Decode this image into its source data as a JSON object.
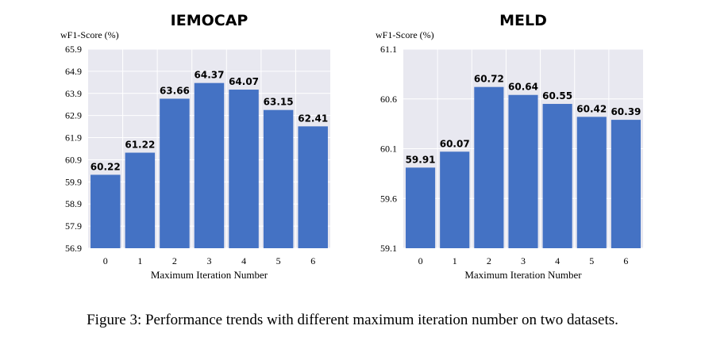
{
  "chart_data": [
    {
      "type": "bar",
      "title": "IEMOCAP",
      "ylabel": "wF1-Score (%)",
      "xlabel": "Maximum Iteration Number",
      "categories": [
        "0",
        "1",
        "2",
        "3",
        "4",
        "5",
        "6"
      ],
      "values": [
        60.22,
        61.22,
        63.66,
        64.37,
        64.07,
        63.15,
        62.41
      ],
      "value_labels": [
        "60.22",
        "61.22",
        "63.66",
        "64.37",
        "64.07",
        "63.15",
        "62.41"
      ],
      "ylim": [
        56.9,
        65.9
      ],
      "yticks": [
        "56.9",
        "57.9",
        "58.9",
        "59.9",
        "60.9",
        "61.9",
        "62.9",
        "63.9",
        "64.9",
        "65.9"
      ],
      "grid": true,
      "bar_color": "#4472c4",
      "background": "#e8e8f0"
    },
    {
      "type": "bar",
      "title": "MELD",
      "ylabel": "wF1-Score (%)",
      "xlabel": "Maximum Iteration Number",
      "categories": [
        "0",
        "1",
        "2",
        "3",
        "4",
        "5",
        "6"
      ],
      "values": [
        59.91,
        60.07,
        60.72,
        60.64,
        60.55,
        60.42,
        60.39
      ],
      "value_labels": [
        "59.91",
        "60.07",
        "60.72",
        "60.64",
        "60.55",
        "60.42",
        "60.39"
      ],
      "ylim": [
        59.1,
        61.1
      ],
      "yticks": [
        "59.1",
        "59.6",
        "60.1",
        "60.6",
        "61.1"
      ],
      "grid": true,
      "bar_color": "#4472c4",
      "background": "#e8e8f0"
    }
  ],
  "caption": "Figure 3: Performance trends with different maximum iteration number on two datasets."
}
